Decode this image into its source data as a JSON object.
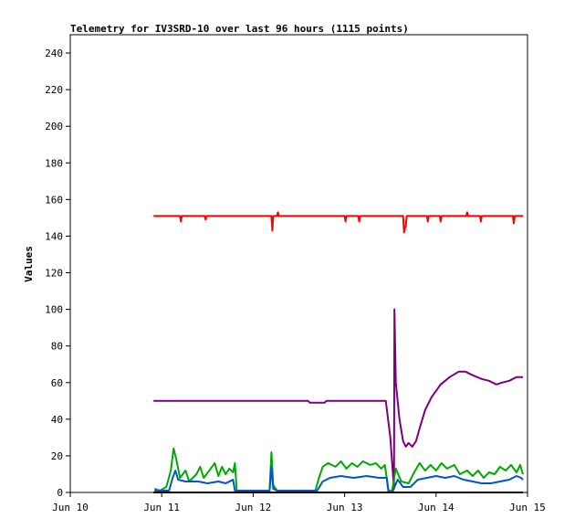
{
  "chart_data": {
    "type": "line",
    "title": "Telemetry for IV3SRD-10 over last 96 hours (1115 points)",
    "xlabel": "",
    "ylabel": "Values",
    "xlim": [
      "Jun 10",
      "Jun 15"
    ],
    "ylim": [
      0,
      250
    ],
    "x_ticks": [
      "Jun 10",
      "Jun 11",
      "Jun 12",
      "Jun 13",
      "Jun 14",
      "Jun 15"
    ],
    "y_ticks": [
      0,
      20,
      40,
      60,
      80,
      100,
      120,
      140,
      160,
      180,
      200,
      220,
      240
    ],
    "grid": false,
    "legend": "none",
    "series": [
      {
        "color": "#ff0000",
        "points": [
          [
            0.91,
            151
          ],
          [
            1.2,
            151
          ],
          [
            1.21,
            148
          ],
          [
            1.22,
            151
          ],
          [
            1.47,
            151
          ],
          [
            1.48,
            149
          ],
          [
            1.49,
            151
          ],
          [
            2.2,
            151
          ],
          [
            2.21,
            143
          ],
          [
            2.22,
            151
          ],
          [
            2.26,
            151
          ],
          [
            2.27,
            153
          ],
          [
            2.28,
            151
          ],
          [
            3.0,
            151
          ],
          [
            3.01,
            148
          ],
          [
            3.02,
            151
          ],
          [
            3.15,
            151
          ],
          [
            3.16,
            148
          ],
          [
            3.17,
            151
          ],
          [
            3.64,
            151
          ],
          [
            3.65,
            142
          ],
          [
            3.67,
            146
          ],
          [
            3.68,
            151
          ],
          [
            3.9,
            151
          ],
          [
            3.91,
            148
          ],
          [
            3.92,
            151
          ],
          [
            4.04,
            151
          ],
          [
            4.05,
            148
          ],
          [
            4.06,
            151
          ],
          [
            4.33,
            151
          ],
          [
            4.34,
            153
          ],
          [
            4.35,
            151
          ],
          [
            4.48,
            151
          ],
          [
            4.49,
            148
          ],
          [
            4.5,
            151
          ],
          [
            4.84,
            151
          ],
          [
            4.85,
            147
          ],
          [
            4.86,
            151
          ],
          [
            4.95,
            151
          ]
        ]
      },
      {
        "color": "#7b007b",
        "points": [
          [
            0.91,
            50
          ],
          [
            2.6,
            50
          ],
          [
            2.62,
            49
          ],
          [
            2.78,
            49
          ],
          [
            2.8,
            50
          ],
          [
            3.45,
            50
          ],
          [
            3.5,
            30
          ],
          [
            3.54,
            2
          ],
          [
            3.545,
            100
          ],
          [
            3.56,
            60
          ],
          [
            3.6,
            40
          ],
          [
            3.64,
            28
          ],
          [
            3.67,
            25
          ],
          [
            3.7,
            27
          ],
          [
            3.74,
            25
          ],
          [
            3.78,
            28
          ],
          [
            3.82,
            35
          ],
          [
            3.88,
            45
          ],
          [
            3.95,
            52
          ],
          [
            4.05,
            59
          ],
          [
            4.15,
            63
          ],
          [
            4.25,
            66
          ],
          [
            4.32,
            66
          ],
          [
            4.4,
            64
          ],
          [
            4.5,
            62
          ],
          [
            4.58,
            61
          ],
          [
            4.66,
            59
          ],
          [
            4.72,
            60
          ],
          [
            4.8,
            61
          ],
          [
            4.88,
            63
          ],
          [
            4.95,
            63
          ]
        ]
      },
      {
        "color": "#00aa00",
        "points": [
          [
            0.92,
            2
          ],
          [
            0.98,
            1
          ],
          [
            1.05,
            3
          ],
          [
            1.1,
            12
          ],
          [
            1.13,
            24
          ],
          [
            1.16,
            18
          ],
          [
            1.2,
            8
          ],
          [
            1.26,
            12
          ],
          [
            1.3,
            6
          ],
          [
            1.38,
            10
          ],
          [
            1.42,
            14
          ],
          [
            1.46,
            8
          ],
          [
            1.52,
            12
          ],
          [
            1.58,
            16
          ],
          [
            1.62,
            9
          ],
          [
            1.66,
            14
          ],
          [
            1.7,
            10
          ],
          [
            1.74,
            13
          ],
          [
            1.78,
            11
          ],
          [
            1.8,
            16
          ],
          [
            1.82,
            1
          ],
          [
            2.18,
            1
          ],
          [
            2.2,
            22
          ],
          [
            2.22,
            4
          ],
          [
            2.26,
            1
          ],
          [
            2.68,
            1
          ],
          [
            2.72,
            8
          ],
          [
            2.76,
            14
          ],
          [
            2.82,
            16
          ],
          [
            2.9,
            14
          ],
          [
            2.96,
            17
          ],
          [
            3.02,
            13
          ],
          [
            3.08,
            16
          ],
          [
            3.14,
            14
          ],
          [
            3.2,
            17
          ],
          [
            3.28,
            15
          ],
          [
            3.34,
            16
          ],
          [
            3.4,
            13
          ],
          [
            3.44,
            15
          ],
          [
            3.48,
            1
          ],
          [
            3.52,
            1
          ],
          [
            3.56,
            13
          ],
          [
            3.62,
            6
          ],
          [
            3.7,
            5
          ],
          [
            3.76,
            11
          ],
          [
            3.82,
            16
          ],
          [
            3.88,
            12
          ],
          [
            3.94,
            15
          ],
          [
            4.0,
            12
          ],
          [
            4.06,
            16
          ],
          [
            4.12,
            13
          ],
          [
            4.2,
            15
          ],
          [
            4.26,
            10
          ],
          [
            4.34,
            12
          ],
          [
            4.4,
            9
          ],
          [
            4.46,
            12
          ],
          [
            4.52,
            8
          ],
          [
            4.58,
            11
          ],
          [
            4.64,
            10
          ],
          [
            4.7,
            14
          ],
          [
            4.76,
            12
          ],
          [
            4.82,
            15
          ],
          [
            4.88,
            11
          ],
          [
            4.92,
            15
          ],
          [
            4.95,
            10
          ]
        ]
      },
      {
        "color": "#0055cc",
        "points": [
          [
            0.92,
            1
          ],
          [
            1.08,
            1
          ],
          [
            1.12,
            8
          ],
          [
            1.15,
            12
          ],
          [
            1.18,
            7
          ],
          [
            1.26,
            6
          ],
          [
            1.4,
            6
          ],
          [
            1.5,
            5
          ],
          [
            1.62,
            6
          ],
          [
            1.7,
            5
          ],
          [
            1.78,
            7
          ],
          [
            1.8,
            1
          ],
          [
            2.18,
            1
          ],
          [
            2.2,
            14
          ],
          [
            2.22,
            2
          ],
          [
            2.26,
            1
          ],
          [
            2.7,
            1
          ],
          [
            2.76,
            6
          ],
          [
            2.84,
            8
          ],
          [
            2.96,
            9
          ],
          [
            3.1,
            8
          ],
          [
            3.24,
            9
          ],
          [
            3.38,
            8
          ],
          [
            3.46,
            8
          ],
          [
            3.48,
            0
          ],
          [
            3.52,
            0
          ],
          [
            3.58,
            7
          ],
          [
            3.64,
            3
          ],
          [
            3.72,
            3
          ],
          [
            3.8,
            7
          ],
          [
            3.9,
            8
          ],
          [
            4.0,
            9
          ],
          [
            4.1,
            8
          ],
          [
            4.2,
            9
          ],
          [
            4.3,
            7
          ],
          [
            4.4,
            6
          ],
          [
            4.5,
            5
          ],
          [
            4.6,
            5
          ],
          [
            4.7,
            6
          ],
          [
            4.8,
            7
          ],
          [
            4.88,
            9
          ],
          [
            4.93,
            8
          ],
          [
            4.95,
            7
          ]
        ]
      },
      {
        "color": "#000000",
        "points": [
          [
            0.91,
            0
          ],
          [
            4.95,
            0
          ]
        ]
      }
    ]
  }
}
